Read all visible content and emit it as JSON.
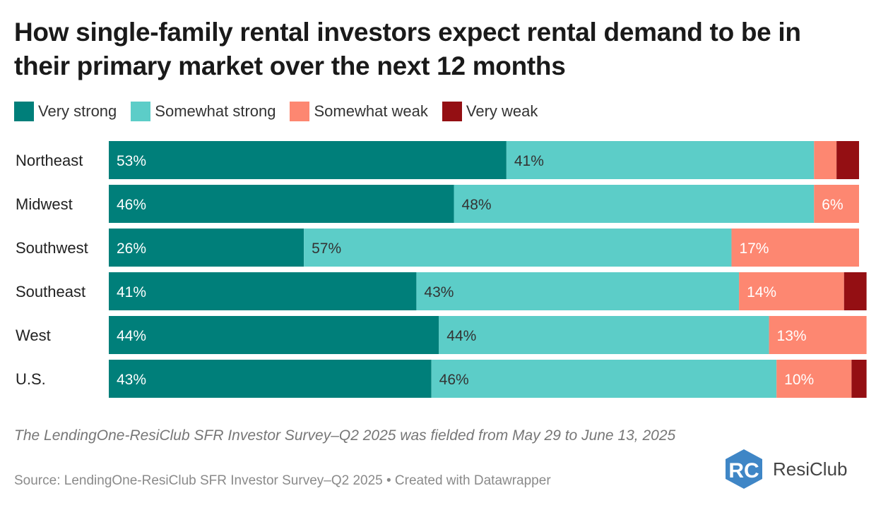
{
  "title": "How single-family rental investors expect rental demand to be in their primary market over the next 12 months",
  "note": "The LendingOne-ResiClub SFR Investor Survey–Q2 2025 was fielded from May 29 to June 13, 2025",
  "source": "Source: LendingOne-ResiClub SFR Investor Survey–Q2 2025 • Created with Datawrapper",
  "brand": {
    "name": "ResiClub",
    "logo_letters": "RC"
  },
  "colors": {
    "very_strong": "#007f7a",
    "somewhat_strong": "#5ccdc8",
    "somewhat_weak": "#fd8771",
    "very_weak": "#940f13",
    "label_on_dark": "#ffffff",
    "label_on_light": "#333333",
    "logo": "#3f86c6"
  },
  "chart_data": {
    "type": "bar",
    "orientation": "horizontal",
    "stacked": true,
    "unit": "%",
    "xlim": [
      0,
      100
    ],
    "legend_position": "top-left",
    "grid": false,
    "categories": [
      "Northeast",
      "Midwest",
      "Southwest",
      "Southeast",
      "West",
      "U.S."
    ],
    "series": [
      {
        "name": "Very strong",
        "color": "#007f7a",
        "values": [
          53,
          46,
          26,
          41,
          44,
          43
        ]
      },
      {
        "name": "Somewhat strong",
        "color": "#5ccdc8",
        "values": [
          41,
          48,
          57,
          43,
          44,
          46
        ]
      },
      {
        "name": "Somewhat weak",
        "color": "#fd8771",
        "values": [
          3,
          6,
          17,
          14,
          13,
          10
        ]
      },
      {
        "name": "Very weak",
        "color": "#940f13",
        "values": [
          3,
          0,
          0,
          3,
          0,
          2
        ]
      }
    ],
    "data_labels": [
      [
        "53%",
        "41%",
        "",
        ""
      ],
      [
        "46%",
        "48%",
        "6%",
        ""
      ],
      [
        "26%",
        "57%",
        "17%",
        ""
      ],
      [
        "41%",
        "43%",
        "14%",
        ""
      ],
      [
        "44%",
        "44%",
        "13%",
        ""
      ],
      [
        "43%",
        "46%",
        "10%",
        ""
      ]
    ]
  }
}
